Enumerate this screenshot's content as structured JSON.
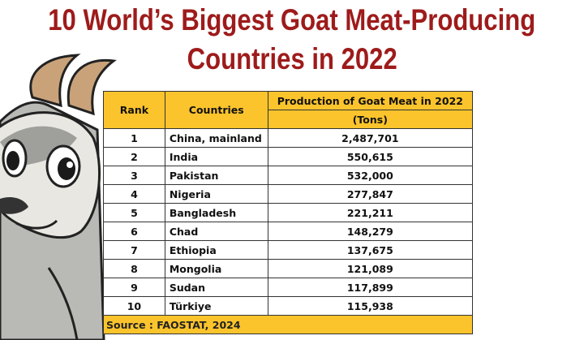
{
  "header": {
    "title_lines": [
      "10 World’s Biggest Goat Meat-Producing",
      "Countries in 2022"
    ]
  },
  "table": {
    "columns": [
      "Rank",
      "Countries",
      "Production of Goat Meat in 2022"
    ],
    "unit": "(Tons)",
    "rows": [
      [
        1,
        "China, mainland",
        "2,487,701"
      ],
      [
        2,
        "India",
        "550,615"
      ],
      [
        3,
        "Pakistan",
        "532,000"
      ],
      [
        4,
        "Nigeria",
        "277,847"
      ],
      [
        5,
        "Bangladesh",
        "221,211"
      ],
      [
        6,
        "Chad",
        "148,279"
      ],
      [
        7,
        "Ethiopia",
        "137,675"
      ],
      [
        8,
        "Mongolia",
        "121,089"
      ],
      [
        9,
        "Sudan",
        "117,899"
      ],
      [
        10,
        "Türkiye",
        "115,938"
      ]
    ],
    "source": "Source : FAOSTAT, 2024"
  }
}
